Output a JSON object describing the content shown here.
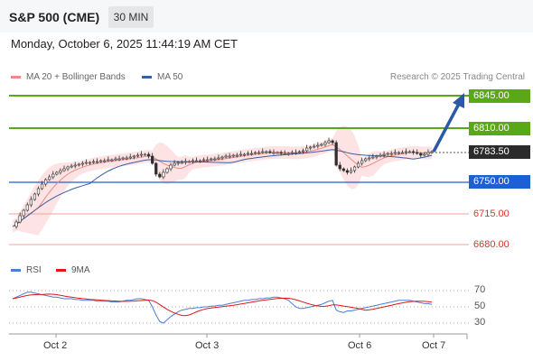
{
  "header": {
    "title": "S&P 500 (CME)",
    "timeframe": "30 MIN",
    "datetime": "Monday, October 6, 2025 11:44:19 AM CET"
  },
  "legend": {
    "ma20_bb": "MA 20 + Bollinger Bands",
    "ma50": "MA 50",
    "copyright": "Research © 2025 Trading Central"
  },
  "colors": {
    "resistance": "#5aa817",
    "support": "#1f5fd6",
    "support_weak": "#e05050",
    "band_fill": "#fde3e3",
    "ma20": "#ef8a8a",
    "ma50": "#3b5ea6",
    "candle": "#2e2e2e",
    "arrow": "#2a5aa6",
    "rsi": "#4a7ed8",
    "rsi_ma": "#e01818"
  },
  "levels": {
    "r2": "6845.00",
    "r1": "6810.00",
    "last": "6783.50",
    "s1": "6750.00",
    "s2": "6715.00",
    "s3": "6680.00"
  },
  "rsi": {
    "label": "RSI",
    "ma_label": "9MA",
    "level_70": "70",
    "level_50": "50",
    "level_30": "30"
  },
  "x_axis": [
    "Oct 2",
    "Oct 3",
    "Oct 6",
    "Oct 7"
  ],
  "chart_data": {
    "type": "line",
    "title": "",
    "price_series": [
      6700,
      6705,
      6712,
      6718,
      6724,
      6730,
      6736,
      6742,
      6747,
      6752,
      6755,
      6758,
      6760,
      6762,
      6764,
      6766,
      6767,
      6768,
      6769,
      6770,
      6771,
      6771,
      6772,
      6772,
      6773,
      6773,
      6774,
      6774,
      6775,
      6775,
      6776,
      6776,
      6777,
      6778,
      6779,
      6780,
      6780,
      6778,
      6770,
      6758,
      6755,
      6760,
      6764,
      6768,
      6770,
      6771,
      6771,
      6772,
      6772,
      6773,
      6773,
      6773,
      6774,
      6774,
      6775,
      6775,
      6776,
      6777,
      6778,
      6778,
      6779,
      6779,
      6780,
      6780,
      6781,
      6781,
      6782,
      6782,
      6783,
      6783,
      6782,
      6782,
      6782,
      6781,
      6781,
      6781,
      6782,
      6782,
      6783,
      6784,
      6787,
      6788,
      6789,
      6790,
      6791,
      6793,
      6795,
      6793,
      6768,
      6764,
      6762,
      6760,
      6762,
      6766,
      6770,
      6773,
      6775,
      6776,
      6777,
      6778,
      6779,
      6780,
      6781,
      6781,
      6782,
      6782,
      6782,
      6783,
      6783,
      6782,
      6781,
      6779,
      6780,
      6782,
      6783
    ],
    "rsi_series": [
      60,
      62,
      64,
      66,
      68,
      68,
      67,
      66,
      65,
      64,
      63,
      62,
      62,
      61,
      60,
      60,
      60,
      59,
      59,
      58,
      58,
      58,
      58,
      57,
      57,
      57,
      57,
      56,
      56,
      56,
      57,
      58,
      58,
      59,
      60,
      60,
      59,
      58,
      50,
      40,
      32,
      30,
      34,
      38,
      41,
      44,
      46,
      47,
      48,
      48,
      49,
      49,
      50,
      50,
      51,
      51,
      52,
      52,
      53,
      54,
      55,
      56,
      57,
      58,
      58,
      59,
      59,
      60,
      60,
      61,
      61,
      62,
      62,
      61,
      60,
      58,
      54,
      50,
      48,
      48,
      49,
      50,
      51,
      52,
      53,
      55,
      57,
      58,
      46,
      44,
      43,
      45,
      45,
      46,
      47,
      48,
      49,
      50,
      51,
      52,
      53,
      54,
      55,
      56,
      57,
      58,
      58,
      58,
      58,
      57,
      56,
      55,
      54,
      54,
      53
    ],
    "rsi_ylim": [
      20,
      80
    ]
  }
}
